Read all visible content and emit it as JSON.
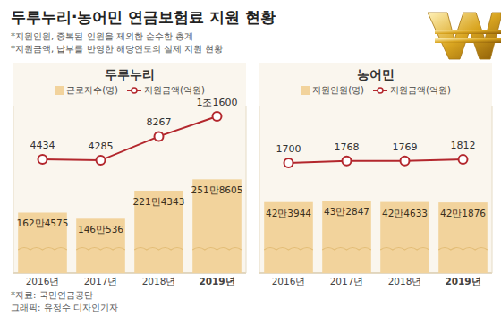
{
  "title": "두루누리·농어민 연금보험료 지원 현황",
  "notes": [
    "*지원인원, 중복된 인원을 제외한 순수한 총계",
    "*지원금액, 납부를 반영한 해당연도의 실제 지원 현황"
  ],
  "source": "*자료: 국민연금공단",
  "credit": "그래픽: 유정수 디자인기자",
  "chart_data": [
    {
      "type": "bar",
      "title": "두루누리",
      "categories": [
        "2016년",
        "2017년",
        "2018년",
        "2019년"
      ],
      "series": [
        {
          "name": "근로자수(명)",
          "type": "bar",
          "color": "#f2d39c",
          "values": [
            1624575,
            1460536,
            2214343,
            2518605
          ],
          "value_labels": [
            "162만4575",
            "146만536",
            "221만4343",
            "251만8605"
          ]
        },
        {
          "name": "지원금액(억원)",
          "type": "line",
          "color": "#b3272d",
          "marker": "circle",
          "axis": "y2",
          "values": [
            4434,
            4285,
            8267,
            11600
          ],
          "value_labels": [
            "4434",
            "4285",
            "8267",
            "1조1600"
          ]
        }
      ],
      "ylim": [
        0,
        4500000
      ],
      "y2lim": [
        -14500,
        13400
      ],
      "grid": false,
      "tick_labels": false,
      "data_labels": true,
      "legend": "top"
    },
    {
      "type": "bar",
      "title": "농어민",
      "categories": [
        "2016년",
        "2017년",
        "2018년",
        "2019년"
      ],
      "series": [
        {
          "name": "지원인원(명)",
          "type": "bar",
          "color": "#f2d39c",
          "values": [
            423944,
            432847,
            424633,
            421876
          ],
          "value_labels": [
            "42만3944",
            "43만2847",
            "42만4633",
            "42만1876"
          ]
        },
        {
          "name": "지원금액(억원)",
          "type": "line",
          "color": "#b3272d",
          "marker": "circle",
          "axis": "y2",
          "values": [
            1700,
            1768,
            1769,
            1812
          ],
          "value_labels": [
            "1700",
            "1768",
            "1769",
            "1812"
          ]
        }
      ],
      "ylim": [
        0,
        1000000
      ],
      "y2lim": [
        -1750,
        3500
      ],
      "grid": false,
      "tick_labels": false,
      "data_labels": true,
      "legend": "top"
    }
  ]
}
